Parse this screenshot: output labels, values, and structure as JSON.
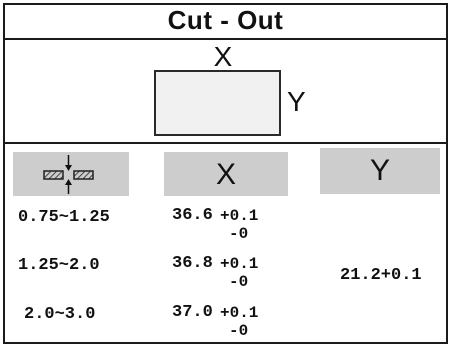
{
  "title": "Cut - Out",
  "diagram": {
    "x_label": "X",
    "y_label": "Y"
  },
  "table": {
    "header_icon": "panel-thickness-icon",
    "header_x": "X",
    "header_y": "Y",
    "rows": [
      {
        "thickness": "0.75~1.25",
        "x_value": "36.6",
        "tol_plus": "+0.1",
        "tol_minus": "-0"
      },
      {
        "thickness": "1.25~2.0",
        "x_value": "36.8",
        "tol_plus": "+0.1",
        "tol_minus": "-0"
      },
      {
        "thickness": "2.0~3.0",
        "x_value": "37.0",
        "tol_plus": "+0.1",
        "tol_minus": "-0"
      }
    ],
    "y_value": "21.2+0.1"
  }
}
